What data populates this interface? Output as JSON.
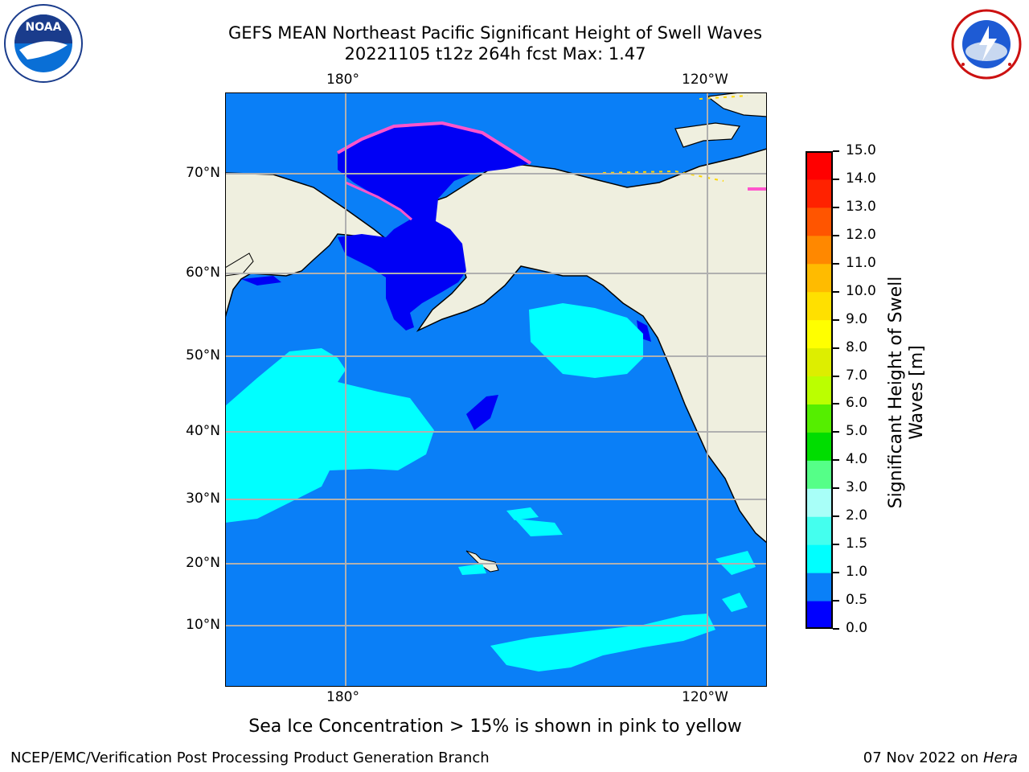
{
  "header": {
    "title_line1": "GEFS MEAN Northeast Pacific Significant Height of Swell Waves",
    "title_line2": "20221105 t12z 264h fcst   Max: 1.47"
  },
  "logos": {
    "left": "noara-logo",
    "right": "nws-logo",
    "right_text": "NATIONAL WEATHER SERVICE"
  },
  "map": {
    "lon_labels": [
      "180°",
      "120°W"
    ],
    "lat_labels": [
      "70°N",
      "60°N",
      "50°N",
      "40°N",
      "30°N",
      "20°N",
      "10°N"
    ],
    "colors": {
      "ocean": "#0a7ff7",
      "land": "#efefdf",
      "deep": "#0000f5",
      "swell_high": "#00ffff",
      "ice": "#ff55cc"
    }
  },
  "colorbar": {
    "title_line1": "Significant Height of Swell",
    "title_line2": "Waves [m]",
    "ticks": [
      "0.0",
      "0.5",
      "1.0",
      "1.5",
      "2.0",
      "3.0",
      "4.0",
      "5.0",
      "6.0",
      "7.0",
      "8.0",
      "9.0",
      "10.0",
      "11.0",
      "12.0",
      "13.0",
      "14.0",
      "15.0"
    ],
    "colors": [
      "#0000ff",
      "#0a80f8",
      "#00ffff",
      "#44ffee",
      "#a8fff8",
      "#55ff88",
      "#00dd00",
      "#55ee00",
      "#bbff00",
      "#ddee00",
      "#ffff00",
      "#ffe000",
      "#ffbb00",
      "#ff8800",
      "#ff5500",
      "#ff2200",
      "#ff0000"
    ]
  },
  "note": "Sea Ice Concentration > 15% is shown in pink to yellow",
  "footer": {
    "left": "NCEP/EMC/Verification Post Processing Product Generation Branch",
    "right_date": "07 Nov 2022 on ",
    "right_machine": "Hera"
  }
}
